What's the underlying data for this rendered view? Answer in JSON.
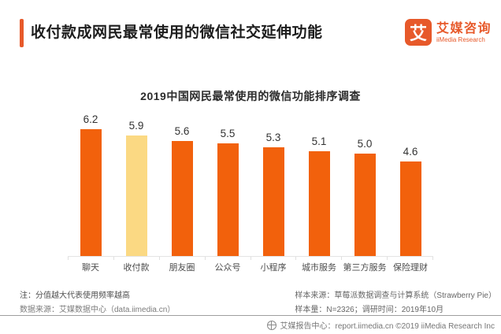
{
  "header": {
    "title": "收付款成网民最常使用的微信社交延伸功能"
  },
  "logo": {
    "mark_glyph": "艾",
    "name_cn": "艾媒咨询",
    "name_en": "iiMedia Research"
  },
  "chart_data": {
    "type": "bar",
    "title": "2019中国网民最常使用的微信功能排序调查",
    "categories": [
      "聊天",
      "收付款",
      "朋友圈",
      "公众号",
      "小程序",
      "城市服务",
      "第三方服务",
      "保险理财"
    ],
    "values": [
      6.2,
      5.9,
      5.6,
      5.5,
      5.3,
      5.1,
      5.0,
      4.6
    ],
    "highlight_index": 1,
    "bar_color": "#f2610c",
    "highlight_color": "#fbd983",
    "xlabel": "",
    "ylabel": "",
    "ylim": [
      0,
      7
    ],
    "grid": false,
    "legend": null,
    "value_labels_shown": true
  },
  "notes": {
    "note_line": "注：分值越大代表使用频率越高",
    "data_source": "数据来源：艾媒数据中心（data.iimedia.cn）",
    "sample_source": "样本来源：草莓派数据调查与计算系统（Strawberry Pie）",
    "sample_info": "样本量：N=2326；调研时间：2019年10月"
  },
  "footer": {
    "icon": "globe-icon",
    "text": "艾媒报告中心：report.iimedia.cn ©2019  iiMedia Research  Inc"
  },
  "colors": {
    "brand_orange": "#e7592a",
    "bar_orange": "#f2610c",
    "highlight_yellow": "#fbd983"
  }
}
